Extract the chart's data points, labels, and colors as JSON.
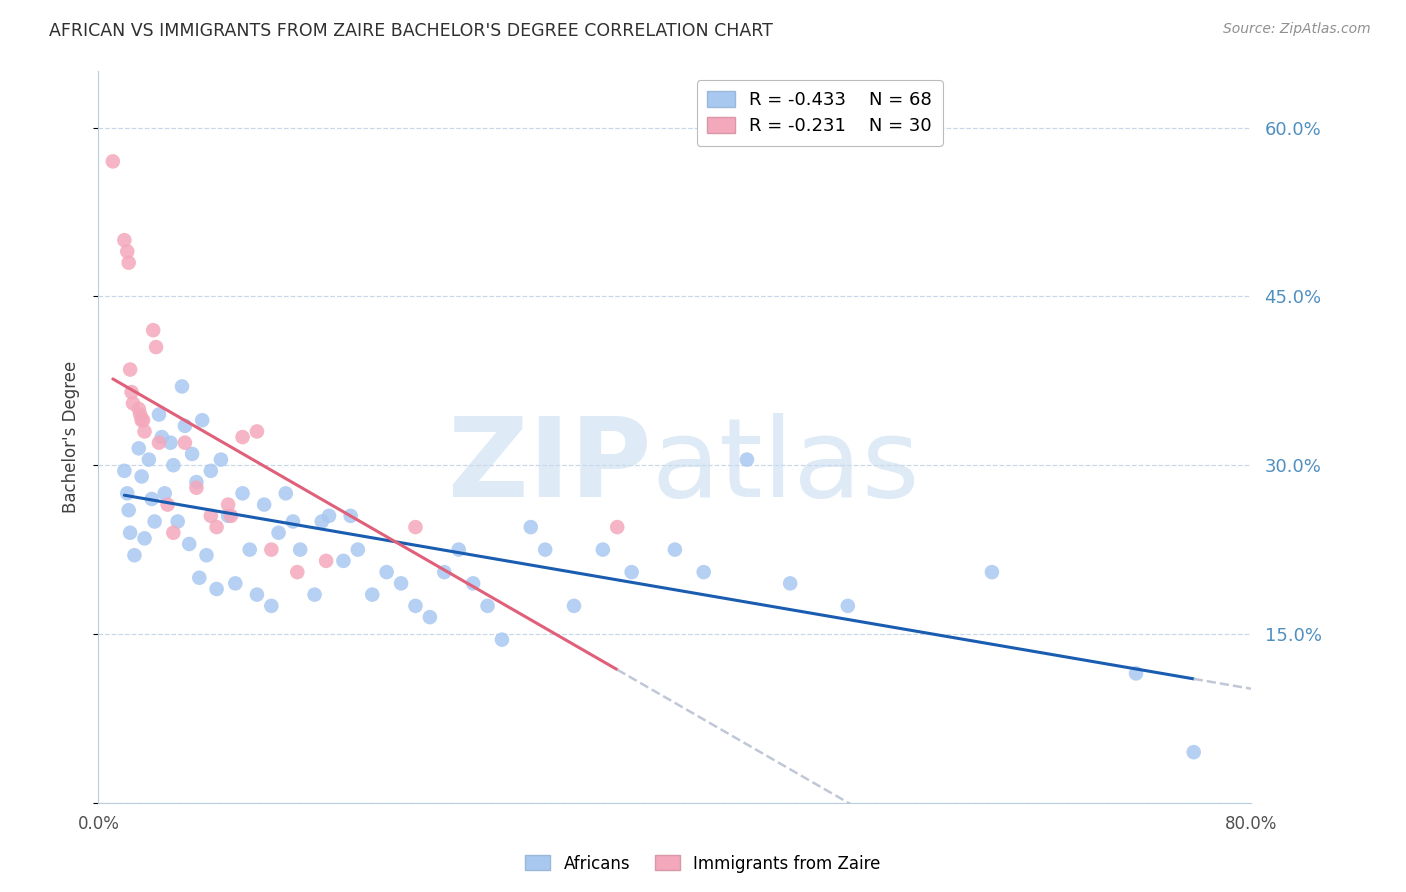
{
  "title": "AFRICAN VS IMMIGRANTS FROM ZAIRE BACHELOR'S DEGREE CORRELATION CHART",
  "source": "Source: ZipAtlas.com",
  "ylabel": "Bachelor's Degree",
  "xlim": [
    0.0,
    0.8
  ],
  "ylim": [
    0.0,
    0.65
  ],
  "yticks": [
    0.0,
    0.15,
    0.3,
    0.45,
    0.6
  ],
  "legend_blue_r": "R = -0.433",
  "legend_blue_n": "N = 68",
  "legend_pink_r": "R = -0.231",
  "legend_pink_n": "N = 30",
  "blue_color": "#A8C8F0",
  "pink_color": "#F4A8BC",
  "line_blue_color": "#1A5CB0",
  "line_pink_color": "#E0607A",
  "dash_color": "#C0C8D8",
  "grid_color": "#C8D8E8",
  "background_color": "#FFFFFF",
  "title_color": "#303030",
  "source_color": "#909090",
  "right_tick_color": "#5090C0",
  "africans_x": [
    0.018,
    0.02,
    0.021,
    0.022,
    0.025,
    0.028,
    0.03,
    0.032,
    0.035,
    0.037,
    0.039,
    0.042,
    0.044,
    0.046,
    0.05,
    0.052,
    0.055,
    0.058,
    0.06,
    0.063,
    0.065,
    0.068,
    0.07,
    0.072,
    0.075,
    0.078,
    0.082,
    0.085,
    0.09,
    0.095,
    0.1,
    0.105,
    0.11,
    0.115,
    0.12,
    0.125,
    0.13,
    0.135,
    0.14,
    0.15,
    0.155,
    0.16,
    0.17,
    0.175,
    0.18,
    0.19,
    0.2,
    0.21,
    0.22,
    0.23,
    0.24,
    0.25,
    0.26,
    0.27,
    0.28,
    0.3,
    0.31,
    0.33,
    0.35,
    0.37,
    0.4,
    0.42,
    0.45,
    0.48,
    0.52,
    0.62,
    0.72,
    0.76
  ],
  "africans_y": [
    0.295,
    0.275,
    0.26,
    0.24,
    0.22,
    0.315,
    0.29,
    0.235,
    0.305,
    0.27,
    0.25,
    0.345,
    0.325,
    0.275,
    0.32,
    0.3,
    0.25,
    0.37,
    0.335,
    0.23,
    0.31,
    0.285,
    0.2,
    0.34,
    0.22,
    0.295,
    0.19,
    0.305,
    0.255,
    0.195,
    0.275,
    0.225,
    0.185,
    0.265,
    0.175,
    0.24,
    0.275,
    0.25,
    0.225,
    0.185,
    0.25,
    0.255,
    0.215,
    0.255,
    0.225,
    0.185,
    0.205,
    0.195,
    0.175,
    0.165,
    0.205,
    0.225,
    0.195,
    0.175,
    0.145,
    0.245,
    0.225,
    0.175,
    0.225,
    0.205,
    0.225,
    0.205,
    0.305,
    0.195,
    0.175,
    0.205,
    0.115,
    0.045
  ],
  "zaire_x": [
    0.01,
    0.018,
    0.02,
    0.021,
    0.022,
    0.023,
    0.024,
    0.028,
    0.029,
    0.03,
    0.031,
    0.032,
    0.038,
    0.04,
    0.042,
    0.048,
    0.052,
    0.06,
    0.068,
    0.078,
    0.082,
    0.09,
    0.092,
    0.1,
    0.11,
    0.12,
    0.138,
    0.158,
    0.22,
    0.36
  ],
  "zaire_y": [
    0.57,
    0.5,
    0.49,
    0.48,
    0.385,
    0.365,
    0.355,
    0.35,
    0.345,
    0.34,
    0.34,
    0.33,
    0.42,
    0.405,
    0.32,
    0.265,
    0.24,
    0.32,
    0.28,
    0.255,
    0.245,
    0.265,
    0.255,
    0.325,
    0.33,
    0.225,
    0.205,
    0.215,
    0.245,
    0.245
  ]
}
